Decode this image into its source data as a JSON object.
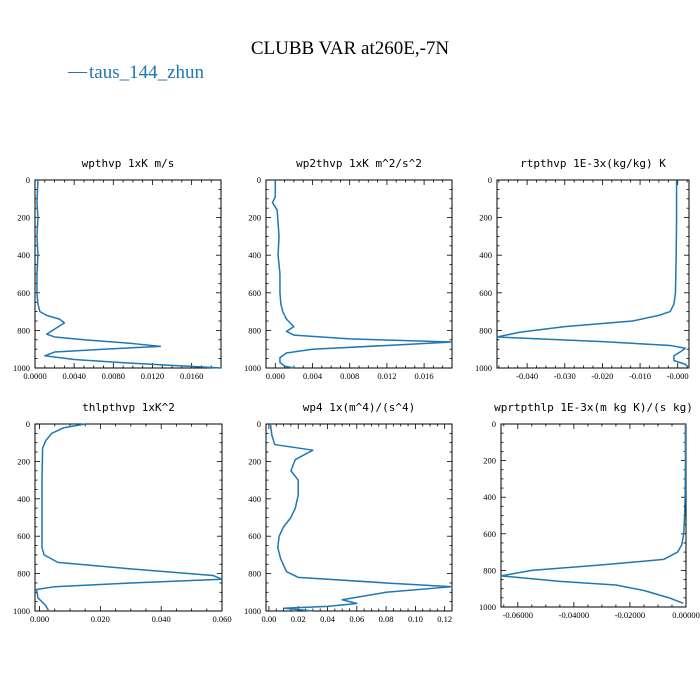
{
  "figure": {
    "title": "CLUBB VAR at260E,-7N",
    "legend_label": "taus_144_zhun",
    "legend_color": "#1f77b4"
  },
  "chart_data": [
    {
      "type": "line",
      "title": "wpthvp   1xK m/s",
      "xlim": [
        0,
        0.019
      ],
      "ylim": [
        1000,
        0
      ],
      "xticks": [
        0,
        0.004,
        0.008,
        0.012,
        0.016
      ],
      "xticklabels": [
        "0.0000",
        "0.0040",
        "0.0080",
        "0.0120",
        "0.0160"
      ],
      "yticks": [
        0,
        200,
        400,
        600,
        800,
        1000
      ],
      "yticklabels": [
        "0",
        "200",
        "400",
        "600",
        "800",
        "1000"
      ],
      "series": [
        {
          "color": "#1f77b4",
          "x": [
            0.0003,
            0.0002,
            0.0003,
            0.0002,
            0.0003,
            0.0002,
            0.0002,
            0.0003,
            0.0005,
            0.0012,
            0.0025,
            0.003,
            0.0012,
            0.002,
            0.005,
            0.01,
            0.0128,
            0.007,
            0.002,
            0.001,
            0.004,
            0.01,
            0.019
          ],
          "y": [
            0,
            120,
            200,
            300,
            400,
            500,
            600,
            660,
            700,
            720,
            740,
            760,
            820,
            835,
            850,
            870,
            885,
            900,
            915,
            935,
            955,
            975,
            1000
          ]
        }
      ]
    },
    {
      "type": "line",
      "title": "wp2thvp   1xK m^2/s^2",
      "xlim": [
        -0.001,
        0.019
      ],
      "ylim": [
        1000,
        0
      ],
      "xticks": [
        0,
        0.004,
        0.008,
        0.012,
        0.016
      ],
      "xticklabels": [
        "0.000",
        "0.004",
        "0.008",
        "0.012",
        "0.016"
      ],
      "yticks": [
        0,
        200,
        400,
        600,
        800,
        1000
      ],
      "yticklabels": [
        "0",
        "200",
        "400",
        "600",
        "800",
        "1000"
      ],
      "series": [
        {
          "color": "#1f77b4",
          "x": [
            0.0,
            0.0,
            -0.0003,
            0.0002,
            0.0004,
            0.0003,
            0.0005,
            0.0005,
            0.0006,
            0.0008,
            0.0012,
            0.002,
            0.0012,
            0.002,
            0.008,
            0.019,
            0.012,
            0.004,
            0.0012,
            0.0005,
            0.0005,
            0.001,
            0.002
          ],
          "y": [
            0,
            90,
            120,
            160,
            300,
            400,
            500,
            600,
            660,
            700,
            740,
            780,
            805,
            825,
            845,
            862,
            880,
            900,
            920,
            945,
            970,
            990,
            1000
          ]
        }
      ]
    },
    {
      "type": "line",
      "title": "rtpthvp   1E-3x(kg/kg) K",
      "xlim": [
        -0.048,
        0.003
      ],
      "ylim": [
        1000,
        0
      ],
      "xticks": [
        -0.04,
        -0.03,
        -0.02,
        -0.01,
        0
      ],
      "xticklabels": [
        "-0.040",
        "-0.030",
        "-0.020",
        "-0.010",
        "-0.000"
      ],
      "yticks": [
        0,
        200,
        400,
        600,
        800,
        1000
      ],
      "yticklabels": [
        "0",
        "200",
        "400",
        "600",
        "800",
        "1000"
      ],
      "series": [
        {
          "color": "#1f77b4",
          "x": [
            -0.0003,
            -0.0003,
            -0.0004,
            -0.0005,
            -0.0006,
            -0.001,
            -0.002,
            -0.005,
            -0.012,
            -0.03,
            -0.042,
            -0.048,
            -0.02,
            -0.002,
            0.002,
            0.001,
            -0.001,
            -0.001,
            0.002,
            0.003
          ],
          "y": [
            0,
            200,
            400,
            500,
            600,
            660,
            700,
            720,
            750,
            780,
            810,
            835,
            860,
            880,
            895,
            910,
            935,
            960,
            980,
            1000
          ]
        }
      ]
    },
    {
      "type": "line",
      "title": "thlpthvp   1xK^2",
      "xlim": [
        -0.0015,
        0.06
      ],
      "ylim": [
        1000,
        0
      ],
      "xticks": [
        0,
        0.02,
        0.04,
        0.06
      ],
      "xticklabels": [
        "0.000",
        "0.020",
        "0.040",
        "0.060"
      ],
      "yticks": [
        0,
        200,
        400,
        600,
        800,
        1000
      ],
      "yticklabels": [
        "0",
        "200",
        "400",
        "600",
        "800",
        "1000"
      ],
      "series": [
        {
          "color": "#1f77b4",
          "x": [
            0.015,
            0.008,
            0.004,
            0.002,
            0.001,
            0.0008,
            0.0008,
            0.0008,
            0.0008,
            0.0015,
            0.006,
            0.03,
            0.057,
            0.06,
            0.03,
            0.005,
            -0.001,
            -0.0005,
            0.002,
            0.003
          ],
          "y": [
            0,
            20,
            50,
            90,
            130,
            300,
            500,
            600,
            660,
            700,
            740,
            775,
            810,
            830,
            850,
            870,
            885,
            930,
            970,
            1000
          ]
        }
      ]
    },
    {
      "type": "line",
      "title": "wp4   1x(m^4)/(s^4)",
      "xlim": [
        -0.002,
        0.125
      ],
      "ylim": [
        1000,
        0
      ],
      "xticks": [
        0,
        0.02,
        0.04,
        0.06,
        0.08,
        0.1,
        0.12
      ],
      "xticklabels": [
        "0.00",
        "0.02",
        "0.04",
        "0.06",
        "0.08",
        "0.10",
        "0.12"
      ],
      "yticks": [
        0,
        200,
        400,
        600,
        800,
        1000
      ],
      "yticklabels": [
        "0",
        "200",
        "400",
        "600",
        "800",
        "1000"
      ],
      "series": [
        {
          "color": "#1f77b4",
          "x": [
            0.001,
            0.002,
            0.004,
            0.03,
            0.018,
            0.015,
            0.02,
            0.02,
            0.018,
            0.015,
            0.01,
            0.007,
            0.006,
            0.008,
            0.012,
            0.02,
            0.08,
            0.125,
            0.08,
            0.05,
            0.06,
            0.04,
            0.01,
            0.03
          ],
          "y": [
            0,
            60,
            110,
            140,
            190,
            250,
            300,
            380,
            450,
            500,
            550,
            600,
            660,
            720,
            790,
            820,
            850,
            870,
            900,
            940,
            960,
            975,
            985,
            1000
          ]
        }
      ]
    },
    {
      "type": "line",
      "title": "wprtpthlp   1E-3x(m kg K)/(s kg)",
      "xlim": [
        -0.066,
        0.0
      ],
      "ylim": [
        1000,
        0
      ],
      "xticks": [
        -0.06,
        -0.04,
        -0.02,
        0
      ],
      "xticklabels": [
        "-0.06000",
        "-0.04000",
        "-0.02000",
        "0.00000"
      ],
      "yticks": [
        0,
        200,
        400,
        600,
        800,
        1000
      ],
      "yticklabels": [
        "0",
        "200",
        "400",
        "600",
        "800",
        "1000"
      ],
      "series": [
        {
          "color": "#1f77b4",
          "x": [
            -0.0002,
            -0.0002,
            -0.0003,
            -0.0005,
            -0.0008,
            -0.0015,
            -0.003,
            -0.008,
            -0.03,
            -0.055,
            -0.066,
            -0.045,
            -0.025,
            -0.015,
            -0.006,
            -0.001
          ],
          "y": [
            0,
            200,
            400,
            500,
            600,
            660,
            700,
            740,
            770,
            800,
            830,
            860,
            880,
            910,
            950,
            980
          ]
        }
      ]
    }
  ]
}
